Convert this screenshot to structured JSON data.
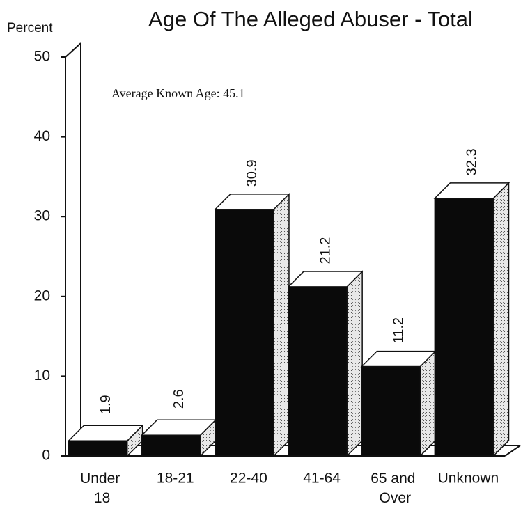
{
  "chart_data": {
    "type": "bar3d",
    "title": "Age Of The Alleged Abuser - Total",
    "y_label": "Percent",
    "annotation": "Average Known Age: 45.1",
    "categories": [
      "Under 18",
      "18-21",
      "22-40",
      "41-64",
      "65 and Over",
      "Unknown"
    ],
    "values": [
      1.9,
      2.6,
      30.9,
      21.2,
      11.2,
      32.3
    ],
    "color": "#0a0a0a",
    "ylim": [
      0,
      50
    ],
    "yticks": [
      0,
      10,
      20,
      30,
      40,
      50
    ]
  }
}
